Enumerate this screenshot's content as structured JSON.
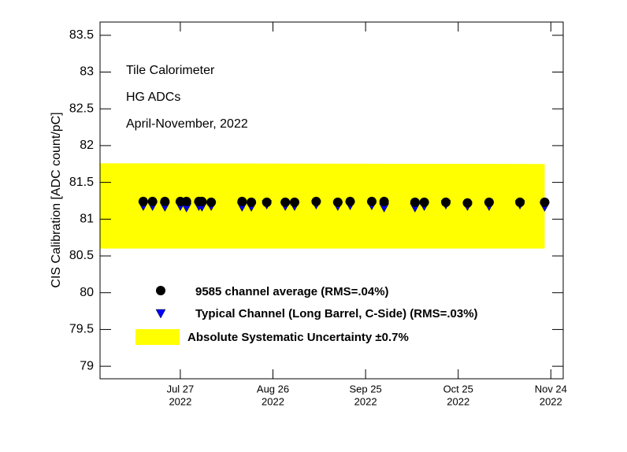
{
  "chart_data": {
    "type": "scatter",
    "ylabel": "CIS Calibration [ADC count/pC]",
    "annotations": [
      "Tile Calorimeter",
      "HG ADCs",
      "April-November, 2022"
    ],
    "xlim": [
      "2022-07-01",
      "2022-11-28"
    ],
    "ylim": [
      78.83,
      83.68
    ],
    "yticks": [
      79,
      79.5,
      80,
      80.5,
      81,
      81.5,
      82,
      82.5,
      83,
      83.5
    ],
    "xticks": [
      {
        "value": "2022-07-27",
        "label": [
          "Jul 27",
          "2022"
        ]
      },
      {
        "value": "2022-08-26",
        "label": [
          "Aug 26",
          "2022"
        ]
      },
      {
        "value": "2022-09-25",
        "label": [
          "Sep 25",
          "2022"
        ]
      },
      {
        "value": "2022-10-25",
        "label": [
          "Oct 25",
          "2022"
        ]
      },
      {
        "value": "2022-11-24",
        "label": [
          "Nov 24",
          "2022"
        ]
      }
    ],
    "band": {
      "name": "Absolute Systematic Uncertainty  ±0.7%",
      "color": "#ffff00",
      "x": [
        "2022-07-01",
        "2022-11-22"
      ],
      "upper": [
        81.76,
        81.75
      ],
      "lower": [
        80.6,
        80.6
      ]
    },
    "x": [
      "2022-07-15",
      "2022-07-18",
      "2022-07-22",
      "2022-07-27",
      "2022-07-29",
      "2022-08-02",
      "2022-08-03",
      "2022-08-06",
      "2022-08-16",
      "2022-08-19",
      "2022-08-24",
      "2022-08-30",
      "2022-09-02",
      "2022-09-09",
      "2022-09-16",
      "2022-09-20",
      "2022-09-27",
      "2022-10-01",
      "2022-10-11",
      "2022-10-14",
      "2022-10-21",
      "2022-10-28",
      "2022-11-04",
      "2022-11-14",
      "2022-11-22"
    ],
    "series": [
      {
        "name": "9585 channel average (RMS=.04%)",
        "color": "#000000",
        "marker": "circle",
        "values": [
          81.24,
          81.24,
          81.24,
          81.24,
          81.24,
          81.24,
          81.24,
          81.23,
          81.24,
          81.23,
          81.23,
          81.23,
          81.23,
          81.24,
          81.23,
          81.24,
          81.24,
          81.24,
          81.23,
          81.23,
          81.23,
          81.22,
          81.23,
          81.23,
          81.23
        ]
      },
      {
        "name": "Typical Channel (Long Barrel, C-Side) (RMS=.03%)",
        "color": "#0000ff",
        "marker": "triangle-down",
        "values": [
          81.18,
          81.18,
          81.17,
          81.18,
          81.16,
          81.18,
          81.17,
          81.18,
          81.17,
          81.17,
          81.2,
          81.18,
          81.18,
          81.2,
          81.18,
          81.19,
          81.19,
          81.16,
          81.16,
          81.18,
          81.2,
          81.18,
          81.18,
          81.2,
          81.17
        ]
      }
    ]
  }
}
